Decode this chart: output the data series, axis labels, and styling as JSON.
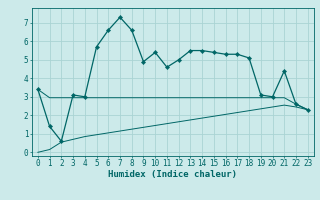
{
  "xlabel": "Humidex (Indice chaleur)",
  "background_color": "#cceaea",
  "grid_color": "#aad4d4",
  "line_color": "#006666",
  "x_values": [
    0,
    1,
    2,
    3,
    4,
    5,
    6,
    7,
    8,
    9,
    10,
    11,
    12,
    13,
    14,
    15,
    16,
    17,
    18,
    19,
    20,
    21,
    22,
    23
  ],
  "main_line": [
    3.4,
    1.4,
    0.6,
    3.1,
    3.0,
    5.7,
    6.6,
    7.3,
    6.6,
    4.9,
    5.4,
    4.6,
    5.0,
    5.5,
    5.5,
    5.4,
    5.3,
    5.3,
    5.1,
    3.1,
    3.0,
    4.4,
    2.6,
    2.3
  ],
  "low_line": [
    0.0,
    0.15,
    0.55,
    0.7,
    0.85,
    0.95,
    1.05,
    1.15,
    1.25,
    1.35,
    1.45,
    1.55,
    1.65,
    1.75,
    1.85,
    1.95,
    2.05,
    2.15,
    2.25,
    2.35,
    2.45,
    2.55,
    2.45,
    2.3
  ],
  "mid_line": [
    3.4,
    2.95,
    2.95,
    2.95,
    2.95,
    2.95,
    2.95,
    2.95,
    2.95,
    2.95,
    2.95,
    2.95,
    2.95,
    2.95,
    2.95,
    2.95,
    2.95,
    2.95,
    2.95,
    2.95,
    2.95,
    2.95,
    2.6,
    2.3
  ],
  "ylim": [
    -0.2,
    7.8
  ],
  "xlim": [
    -0.5,
    23.5
  ],
  "yticks": [
    0,
    1,
    2,
    3,
    4,
    5,
    6,
    7
  ],
  "xticks": [
    0,
    1,
    2,
    3,
    4,
    5,
    6,
    7,
    8,
    9,
    10,
    11,
    12,
    13,
    14,
    15,
    16,
    17,
    18,
    19,
    20,
    21,
    22,
    23
  ],
  "tick_fontsize": 5.5,
  "xlabel_fontsize": 6.5
}
